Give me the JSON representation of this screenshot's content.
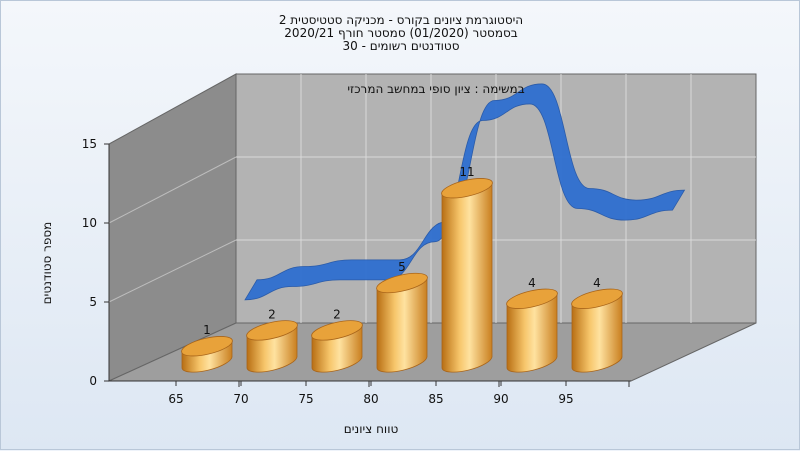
{
  "chart_data": {
    "type": "bar",
    "title_lines": [
      "היסטוגרמת ציונים בקורס - מכניקה סטטיסטית 2",
      "בסמסטר  (01/2020)  סמסטר חורף  2020/21",
      "סטודנטים רשומים - 30"
    ],
    "subtitle": "במשימה : ציון סופי במחשב המרכזי",
    "xlabel": "טווח ציונים",
    "ylabel": "מספר סטודנטים",
    "x_ticks": [
      "65",
      "70",
      "75",
      "80",
      "85",
      "90",
      "95"
    ],
    "y_ticks": [
      0,
      5,
      10,
      15
    ],
    "ylim": [
      0,
      15
    ],
    "values": [
      1,
      2,
      2,
      5,
      11,
      4,
      4
    ],
    "data_labels": [
      "1",
      "2",
      "2",
      "5",
      "11",
      "4",
      "4"
    ],
    "curve": [
      2,
      2.8,
      3.2,
      3.2,
      5.5,
      12.8,
      13.8,
      7.5,
      6.8,
      7.4
    ],
    "grid": true,
    "colors": {
      "bars": "#e8a23a",
      "curve": "#2f6fd0",
      "wall": "#b3b3b3",
      "side": "#8c8c8c",
      "floor": "#9e9e9e"
    }
  }
}
